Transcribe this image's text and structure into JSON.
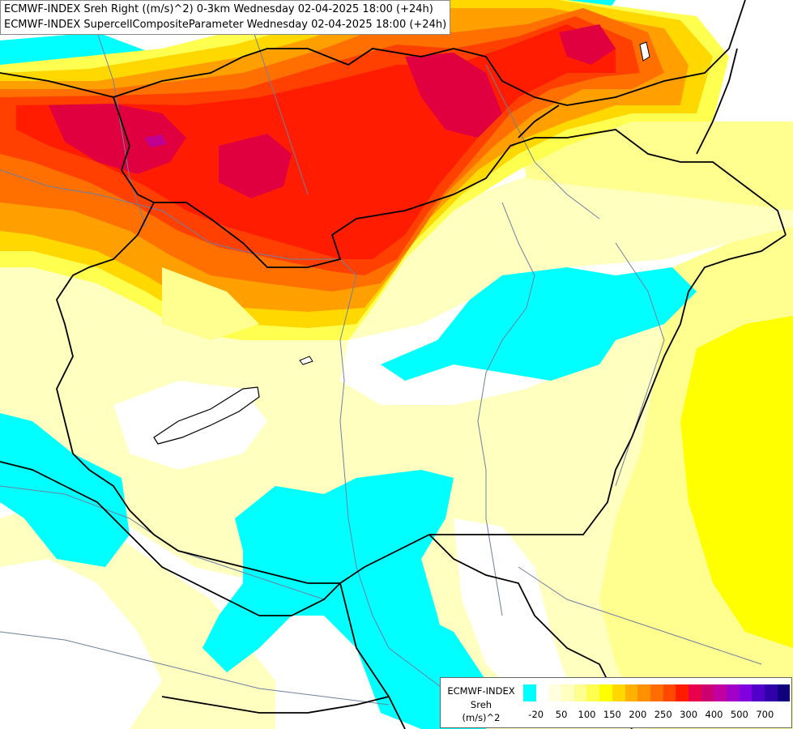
{
  "header": {
    "line1": "ECMWF-INDEX Sreh Right ((m/s)^2) 0-3km Wednesday 02-04-2025 18:00 (+24h)",
    "line2": "ECMWF-INDEX SupercellCompositeParameter Wednesday 02-04-2025 18:00 (+24h)"
  },
  "legend": {
    "brand": "ECMWF-INDEX",
    "parameter": "Sreh",
    "unit": "(m/s)^2",
    "colors": [
      "#00ffff",
      "#ffffff",
      "#ffffe0",
      "#ffffc0",
      "#ffff90",
      "#ffff50",
      "#ffff00",
      "#ffd800",
      "#ffb000",
      "#ff9000",
      "#ff6c00",
      "#ff4800",
      "#ff1c00",
      "#e8004a",
      "#cc0070",
      "#c000a0",
      "#a000c8",
      "#8000e0",
      "#5000c8",
      "#3000a8",
      "#100080"
    ],
    "ticks": [
      "-20",
      "50",
      "100",
      "150",
      "200",
      "250",
      "300",
      "400",
      "500",
      "700"
    ]
  },
  "palette": {
    "cyan": "#00ffff",
    "pale_yellow": "#ffffc0",
    "light_yellow": "#ffff90",
    "yellow": "#ffff00",
    "gold": "#ffd800",
    "orange": "#ffa000",
    "dark_orange": "#ff7000",
    "red_orange": "#ff4000",
    "red": "#ff1c00",
    "crimson": "#e00040",
    "magenta": "#c00090",
    "border": "#000000",
    "river": "#6f7fa0"
  }
}
